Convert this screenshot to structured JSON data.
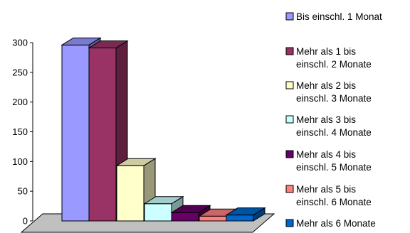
{
  "chart_data": {
    "type": "bar",
    "three_d": true,
    "categories": [
      ""
    ],
    "ylim": [
      0,
      300
    ],
    "yticks": [
      "0",
      "50",
      "100",
      "150",
      "200",
      "250",
      "300"
    ],
    "grid": false,
    "legend_position": "right",
    "series": [
      {
        "name": "Bis einschl. 1 Monat",
        "values": [
          296
        ],
        "color": "#9999ff"
      },
      {
        "name": "Mehr als 1 bis einschl. 2 Monate",
        "values": [
          291
        ],
        "color": "#993366"
      },
      {
        "name": "Mehr als 2 bis einschl. 3 Monate",
        "values": [
          93
        ],
        "color": "#ffffcc"
      },
      {
        "name": "Mehr als 3 bis einschl. 4 Monate",
        "values": [
          29
        ],
        "color": "#ccffff"
      },
      {
        "name": "Mehr als 4 bis einschl. 5 Monate",
        "values": [
          14
        ],
        "color": "#660066"
      },
      {
        "name": "Mehr als 5 bis einschl. 6 Monate",
        "values": [
          8
        ],
        "color": "#ff8080"
      },
      {
        "name": "Mehr als 6 Monate",
        "values": [
          10
        ],
        "color": "#0066cc"
      }
    ],
    "legend_lines": [
      [
        "Bis einschl. 1 Monat"
      ],
      [
        "Mehr als 1 bis",
        "einschl. 2 Monate"
      ],
      [
        "Mehr als 2 bis",
        "einschl. 3 Monate"
      ],
      [
        "Mehr als 3 bis",
        "einschl. 4 Monate"
      ],
      [
        "Mehr als 4 bis",
        "einschl. 5 Monate"
      ],
      [
        "Mehr als 5 bis",
        "einschl. 6 Monate"
      ],
      [
        "Mehr als 6 Monate"
      ]
    ]
  }
}
